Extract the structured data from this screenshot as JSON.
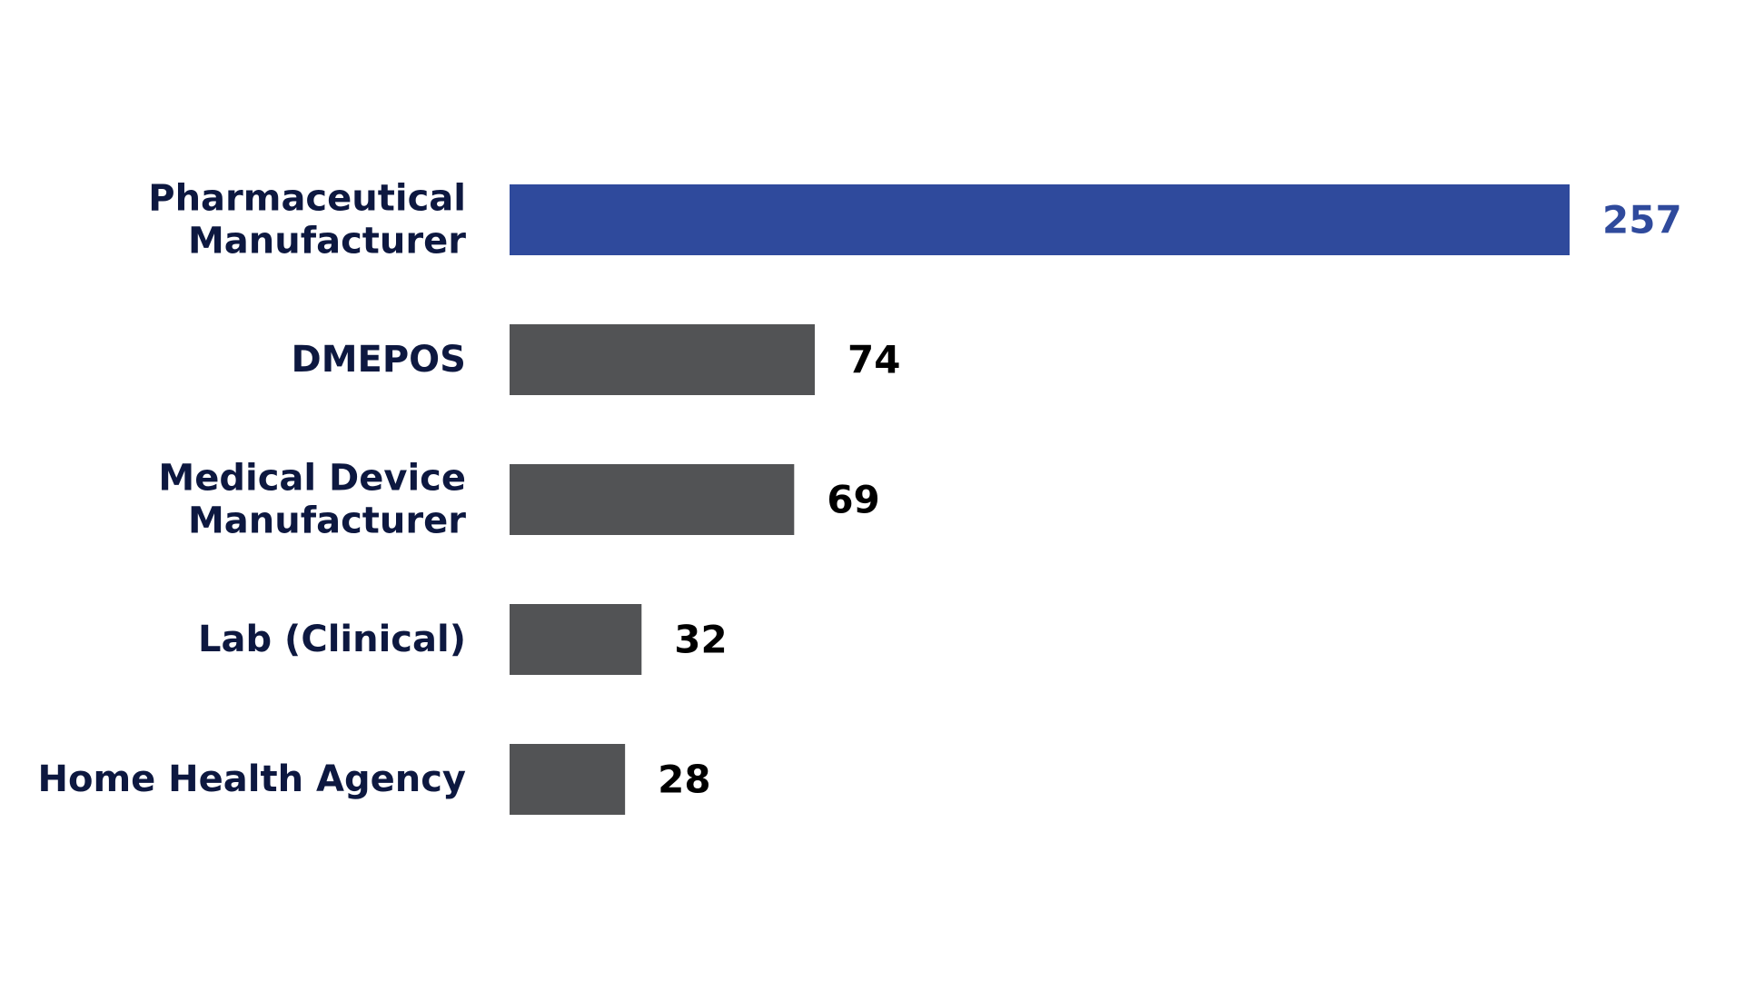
{
  "chart_data": {
    "type": "bar",
    "orientation": "horizontal",
    "categories": [
      "Pharmaceutical\nManufacturer",
      "DMEPOS",
      "Medical Device\nManufacturer",
      "Lab (Clinical)",
      "Home Health Agency"
    ],
    "values": [
      257,
      74,
      69,
      32,
      28
    ],
    "value_labels": [
      "257",
      "74",
      "69",
      "32",
      "28"
    ],
    "highlight_index": 0,
    "colors": {
      "highlight": "#2f4a9c",
      "bar": "#525355",
      "category_text": "#0d1840",
      "value_text": "#000000",
      "highlight_value_text": "#2f4a9c"
    },
    "xlim": [
      0,
      257
    ],
    "grid": false,
    "legend": "none"
  }
}
